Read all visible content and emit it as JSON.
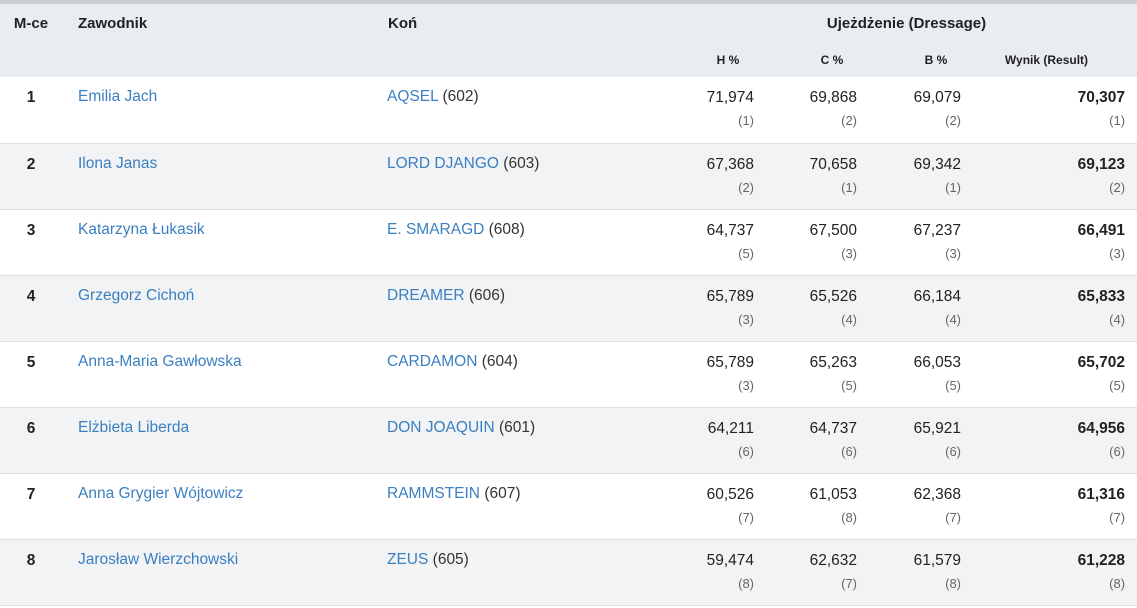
{
  "headers": {
    "place": "M-ce",
    "rider": "Zawodnik",
    "horse": "Koń",
    "dressage": "Ujeżdżenie (Dressage)",
    "h": "H %",
    "c": "C %",
    "b": "B %",
    "result": "Wynik (Result)"
  },
  "rows": [
    {
      "place": "1",
      "rider": "Emilia Jach",
      "horse": "AQSEL",
      "horse_no": "(602)",
      "h": "71,974",
      "h_rank": "(1)",
      "c": "69,868",
      "c_rank": "(2)",
      "b": "69,079",
      "b_rank": "(2)",
      "result": "70,307",
      "result_rank": "(1)"
    },
    {
      "place": "2",
      "rider": "Ilona Janas",
      "horse": "LORD DJANGO",
      "horse_no": "(603)",
      "h": "67,368",
      "h_rank": "(2)",
      "c": "70,658",
      "c_rank": "(1)",
      "b": "69,342",
      "b_rank": "(1)",
      "result": "69,123",
      "result_rank": "(2)"
    },
    {
      "place": "3",
      "rider": "Katarzyna Łukasik",
      "horse": "E. SMARAGD",
      "horse_no": "(608)",
      "h": "64,737",
      "h_rank": "(5)",
      "c": "67,500",
      "c_rank": "(3)",
      "b": "67,237",
      "b_rank": "(3)",
      "result": "66,491",
      "result_rank": "(3)"
    },
    {
      "place": "4",
      "rider": "Grzegorz Cichoń",
      "horse": "DREAMER",
      "horse_no": "(606)",
      "h": "65,789",
      "h_rank": "(3)",
      "c": "65,526",
      "c_rank": "(4)",
      "b": "66,184",
      "b_rank": "(4)",
      "result": "65,833",
      "result_rank": "(4)"
    },
    {
      "place": "5",
      "rider": "Anna-Maria Gawłowska",
      "horse": "CARDAMON",
      "horse_no": "(604)",
      "h": "65,789",
      "h_rank": "(3)",
      "c": "65,263",
      "c_rank": "(5)",
      "b": "66,053",
      "b_rank": "(5)",
      "result": "65,702",
      "result_rank": "(5)"
    },
    {
      "place": "6",
      "rider": "Elżbieta Liberda",
      "horse": "DON JOAQUIN",
      "horse_no": "(601)",
      "h": "64,211",
      "h_rank": "(6)",
      "c": "64,737",
      "c_rank": "(6)",
      "b": "65,921",
      "b_rank": "(6)",
      "result": "64,956",
      "result_rank": "(6)"
    },
    {
      "place": "7",
      "rider": "Anna Grygier Wójtowicz",
      "horse": "RAMMSTEIN",
      "horse_no": "(607)",
      "h": "60,526",
      "h_rank": "(7)",
      "c": "61,053",
      "c_rank": "(8)",
      "b": "62,368",
      "b_rank": "(7)",
      "result": "61,316",
      "result_rank": "(7)"
    },
    {
      "place": "8",
      "rider": "Jarosław Wierzchowski",
      "horse": "ZEUS",
      "horse_no": "(605)",
      "h": "59,474",
      "h_rank": "(8)",
      "c": "62,632",
      "c_rank": "(7)",
      "b": "61,579",
      "b_rank": "(8)",
      "result": "61,228",
      "result_rank": "(8)"
    }
  ]
}
